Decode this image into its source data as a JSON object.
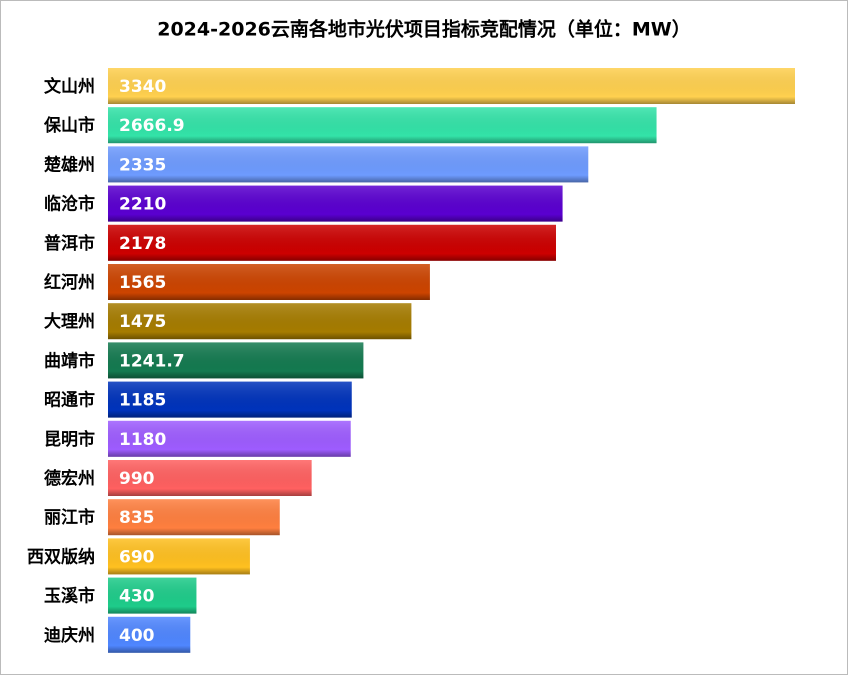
{
  "chart_data": {
    "type": "hbar",
    "title": "2024-2026云南各地市光伏项目指标竞配情况（单位：MW）",
    "categories": [
      "文山州",
      "保山市",
      "楚雄州",
      "临沧市",
      "普洱市",
      "红河州",
      "大理州",
      "曲靖市",
      "昭通市",
      "昆明市",
      "德宏州",
      "丽江市",
      "西双版纳",
      "玉溪市",
      "迪庆州"
    ],
    "values": [
      3340,
      2666.9,
      2335,
      2210,
      2178,
      1565,
      1475,
      1241.7,
      1185,
      1180,
      990,
      835,
      690,
      430,
      400
    ],
    "colors": [
      "#FFD04F",
      "#33E3A8",
      "#6E9BFF",
      "#5A00D0",
      "#CC0000",
      "#CC4400",
      "#A67C00",
      "#147A50",
      "#0033BB",
      "#9E5CFF",
      "#FF6060",
      "#FF7F3F",
      "#FFC020",
      "#1ECC8A",
      "#4F86FF"
    ]
  }
}
